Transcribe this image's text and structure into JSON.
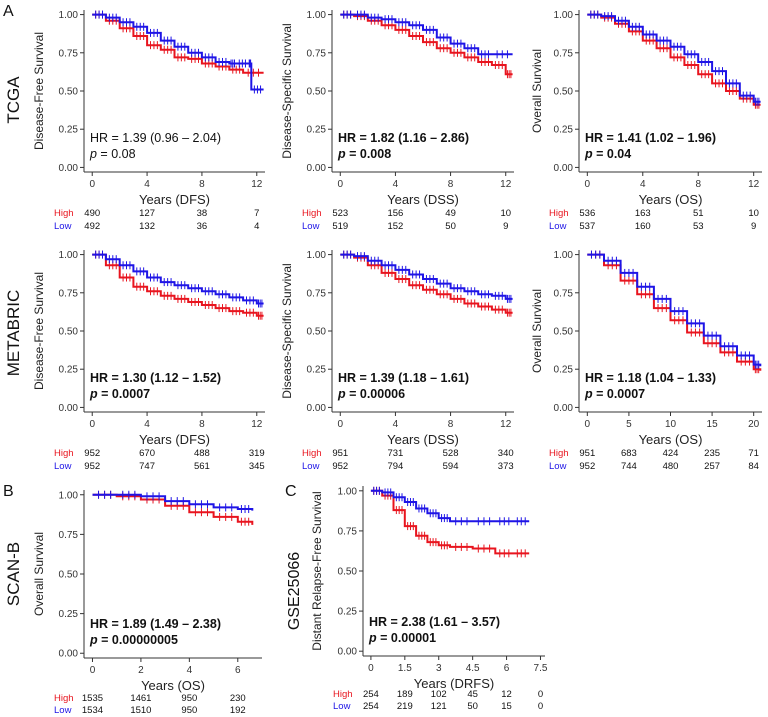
{
  "panel_labels": {
    "a": "A",
    "b": "B",
    "c": "C"
  },
  "row_labels": {
    "tcga": "TCGA",
    "metabric": "METABRIC",
    "scanb": "SCAN-B",
    "gse": "GSE25066"
  },
  "colors": {
    "high": "#e8141e",
    "low": "#1e14e6",
    "axis": "#333333",
    "text": "#222222"
  },
  "risk_labels": {
    "high": "High",
    "low": "Low"
  },
  "chart_data": [
    {
      "type": "line",
      "id": "tcga_dfs",
      "ylabel": "Disease-Free Survival",
      "xlabel": "Years (DFS)",
      "xlim": [
        -0.6,
        12.6
      ],
      "ylim": [
        -0.03,
        1.03
      ],
      "xticks": [
        0,
        4,
        8,
        12
      ],
      "yticks": [
        0.0,
        0.25,
        0.5,
        0.75,
        1.0
      ],
      "ytick_labels": [
        "0.00",
        "0.25",
        "0.50",
        "0.75",
        "1.00"
      ],
      "hr_text": "HR = 1.39 (0.96 – 2.04)",
      "p_label": "p",
      "p_value": " = 0.08",
      "hr_bold": false,
      "series": [
        {
          "name": "High",
          "x": [
            0,
            1,
            2,
            3,
            4,
            5,
            6,
            7,
            8,
            9,
            10,
            11,
            12.5
          ],
          "y": [
            1.0,
            0.96,
            0.91,
            0.86,
            0.8,
            0.77,
            0.72,
            0.71,
            0.68,
            0.66,
            0.64,
            0.62,
            0.62
          ]
        },
        {
          "name": "Low",
          "x": [
            0,
            1,
            2,
            3,
            4,
            5,
            6,
            7,
            8,
            9,
            10,
            10.5,
            11.4,
            11.6,
            12.5
          ],
          "y": [
            1.0,
            0.98,
            0.95,
            0.92,
            0.88,
            0.83,
            0.79,
            0.75,
            0.72,
            0.69,
            0.68,
            0.68,
            0.68,
            0.51,
            0.51
          ]
        }
      ],
      "risk_times": [
        0,
        4,
        8,
        12
      ],
      "risk": {
        "high": [
          "490",
          "127",
          "38",
          "7"
        ],
        "low": [
          "492",
          "132",
          "36",
          "4"
        ]
      }
    },
    {
      "type": "line",
      "id": "tcga_dss",
      "ylabel": "Disease-Specific Survival",
      "xlabel": "Years (DSS)",
      "xlim": [
        -0.6,
        12.6
      ],
      "ylim": [
        -0.03,
        1.03
      ],
      "xticks": [
        0,
        4,
        8,
        12
      ],
      "yticks": [
        0.0,
        0.25,
        0.5,
        0.75,
        1.0
      ],
      "ytick_labels": [
        "0.00",
        "0.25",
        "0.50",
        "0.75",
        "1.00"
      ],
      "hr_text": "HR = 1.82 (1.16 – 2.86)",
      "p_label": "p",
      "p_value": " = 0.008",
      "hr_bold": true,
      "series": [
        {
          "name": "High",
          "x": [
            0,
            1,
            2,
            3,
            4,
            5,
            6,
            7,
            8,
            9,
            10,
            11,
            12,
            12.5
          ],
          "y": [
            1.0,
            0.99,
            0.96,
            0.93,
            0.9,
            0.86,
            0.82,
            0.78,
            0.75,
            0.72,
            0.69,
            0.67,
            0.61,
            0.61
          ]
        },
        {
          "name": "Low",
          "x": [
            0,
            1,
            2,
            3,
            4,
            5,
            6,
            7,
            8,
            9,
            10,
            11,
            12.5
          ],
          "y": [
            1.0,
            1.0,
            0.98,
            0.97,
            0.95,
            0.93,
            0.9,
            0.85,
            0.81,
            0.78,
            0.74,
            0.74,
            0.74
          ]
        }
      ],
      "risk_times": [
        0,
        4,
        8,
        12
      ],
      "risk": {
        "high": [
          "523",
          "156",
          "49",
          "10"
        ],
        "low": [
          "519",
          "152",
          "50",
          "9"
        ]
      }
    },
    {
      "type": "line",
      "id": "tcga_os",
      "ylabel": "Overall Survival",
      "xlabel": "Years (OS)",
      "xlim": [
        -0.6,
        12.6
      ],
      "ylim": [
        -0.03,
        1.03
      ],
      "xticks": [
        0,
        4,
        8,
        12
      ],
      "yticks": [
        0.0,
        0.25,
        0.5,
        0.75,
        1.0
      ],
      "ytick_labels": [
        "0.00",
        "0.25",
        "0.50",
        "0.75",
        "1.00"
      ],
      "hr_text": "HR = 1.41 (1.02 – 1.96)",
      "p_label": "p",
      "p_value": " = 0.04",
      "hr_bold": true,
      "series": [
        {
          "name": "High",
          "x": [
            0,
            1,
            2,
            3,
            4,
            5,
            6,
            7,
            8,
            9,
            10,
            11,
            12,
            12.5
          ],
          "y": [
            1.0,
            0.98,
            0.94,
            0.89,
            0.83,
            0.78,
            0.72,
            0.67,
            0.61,
            0.55,
            0.5,
            0.45,
            0.41,
            0.41
          ]
        },
        {
          "name": "Low",
          "x": [
            0,
            1,
            2,
            3,
            4,
            5,
            6,
            7,
            8,
            9,
            10,
            11,
            12,
            12.5
          ],
          "y": [
            1.0,
            0.99,
            0.96,
            0.92,
            0.87,
            0.83,
            0.79,
            0.74,
            0.69,
            0.63,
            0.55,
            0.47,
            0.43,
            0.43
          ]
        }
      ],
      "risk_times": [
        0,
        4,
        8,
        12
      ],
      "risk": {
        "high": [
          "536",
          "163",
          "51",
          "10"
        ],
        "low": [
          "537",
          "160",
          "53",
          "9"
        ]
      }
    },
    {
      "type": "line",
      "id": "metabric_dfs",
      "ylabel": "Disease-Free Survival",
      "xlabel": "Years (DFS)",
      "xlim": [
        -0.6,
        12.6
      ],
      "ylim": [
        -0.03,
        1.03
      ],
      "xticks": [
        0,
        4,
        8,
        12
      ],
      "yticks": [
        0.0,
        0.25,
        0.5,
        0.75,
        1.0
      ],
      "ytick_labels": [
        "0.00",
        "0.25",
        "0.50",
        "0.75",
        "1.00"
      ],
      "hr_text": "HR = 1.30 (1.12 – 1.52)",
      "p_label": "p",
      "p_value": " = 0.0007",
      "hr_bold": true,
      "series": [
        {
          "name": "High",
          "x": [
            0,
            1,
            2,
            3,
            4,
            5,
            6,
            7,
            8,
            9,
            10,
            11,
            12,
            12.5
          ],
          "y": [
            1.0,
            0.93,
            0.85,
            0.79,
            0.76,
            0.73,
            0.71,
            0.69,
            0.67,
            0.65,
            0.63,
            0.62,
            0.6,
            0.6
          ]
        },
        {
          "name": "Low",
          "x": [
            0,
            1,
            2,
            3,
            4,
            5,
            6,
            7,
            8,
            9,
            10,
            11,
            12,
            12.5
          ],
          "y": [
            1.0,
            0.97,
            0.93,
            0.89,
            0.85,
            0.82,
            0.8,
            0.78,
            0.76,
            0.74,
            0.72,
            0.7,
            0.68,
            0.68
          ]
        }
      ],
      "risk_times": [
        0,
        4,
        8,
        12
      ],
      "risk": {
        "high": [
          "952",
          "670",
          "488",
          "319"
        ],
        "low": [
          "952",
          "747",
          "561",
          "345"
        ]
      }
    },
    {
      "type": "line",
      "id": "metabric_dss",
      "ylabel": "Disease-Specific Survival",
      "xlabel": "Years (DSS)",
      "xlim": [
        -0.6,
        12.6
      ],
      "ylim": [
        -0.03,
        1.03
      ],
      "xticks": [
        0,
        4,
        8,
        12
      ],
      "yticks": [
        0.0,
        0.25,
        0.5,
        0.75,
        1.0
      ],
      "ytick_labels": [
        "0.00",
        "0.25",
        "0.50",
        "0.75",
        "1.00"
      ],
      "hr_text": "HR = 1.39 (1.18 – 1.61)",
      "p_label": "p",
      "p_value": " = 0.00006",
      "hr_bold": true,
      "series": [
        {
          "name": "High",
          "x": [
            0,
            1,
            2,
            3,
            4,
            5,
            6,
            7,
            8,
            9,
            10,
            11,
            12,
            12.5
          ],
          "y": [
            1.0,
            0.98,
            0.93,
            0.88,
            0.84,
            0.8,
            0.77,
            0.74,
            0.71,
            0.68,
            0.66,
            0.64,
            0.62,
            0.62
          ]
        },
        {
          "name": "Low",
          "x": [
            0,
            1,
            2,
            3,
            4,
            5,
            6,
            7,
            8,
            9,
            10,
            11,
            12,
            12.5
          ],
          "y": [
            1.0,
            0.99,
            0.96,
            0.93,
            0.9,
            0.87,
            0.84,
            0.81,
            0.78,
            0.76,
            0.74,
            0.73,
            0.71,
            0.71
          ]
        }
      ],
      "risk_times": [
        0,
        4,
        8,
        12
      ],
      "risk": {
        "high": [
          "951",
          "731",
          "528",
          "340"
        ],
        "low": [
          "952",
          "794",
          "594",
          "373"
        ]
      }
    },
    {
      "type": "line",
      "id": "metabric_os",
      "ylabel": "Overall Survival",
      "xlabel": "Years (OS)",
      "xlim": [
        -1.0,
        21.0
      ],
      "ylim": [
        -0.03,
        1.03
      ],
      "xticks": [
        0,
        5,
        10,
        15,
        20
      ],
      "yticks": [
        0.0,
        0.25,
        0.5,
        0.75,
        1.0
      ],
      "ytick_labels": [
        "0.00",
        "0.25",
        "0.50",
        "0.75",
        "1.00"
      ],
      "hr_text": "HR = 1.18 (1.04 – 1.33)",
      "p_label": "p",
      "p_value": " = 0.0007",
      "hr_bold": true,
      "series": [
        {
          "name": "High",
          "x": [
            0,
            2,
            4,
            6,
            8,
            10,
            12,
            14,
            16,
            18,
            20,
            20.8
          ],
          "y": [
            1.0,
            0.93,
            0.83,
            0.74,
            0.65,
            0.57,
            0.49,
            0.42,
            0.36,
            0.3,
            0.25,
            0.24
          ]
        },
        {
          "name": "Low",
          "x": [
            0,
            2,
            4,
            6,
            8,
            10,
            12,
            14,
            16,
            18,
            20,
            20.8
          ],
          "y": [
            1.0,
            0.96,
            0.88,
            0.79,
            0.71,
            0.63,
            0.55,
            0.47,
            0.4,
            0.34,
            0.28,
            0.27
          ]
        }
      ],
      "risk_times": [
        0,
        5,
        10,
        15,
        20
      ],
      "risk": {
        "high": [
          "951",
          "683",
          "424",
          "235",
          "71"
        ],
        "low": [
          "952",
          "744",
          "480",
          "257",
          "84"
        ]
      }
    },
    {
      "type": "line",
      "id": "scanb_os",
      "ylabel": "Overall Survival",
      "xlabel": "Years (OS)",
      "xlim": [
        -0.35,
        7.0
      ],
      "ylim": [
        -0.03,
        1.03
      ],
      "xticks": [
        0,
        2,
        4,
        6
      ],
      "yticks": [
        0.0,
        0.25,
        0.5,
        0.75,
        1.0
      ],
      "ytick_labels": [
        "0.00",
        "0.25",
        "0.50",
        "0.75",
        "1.00"
      ],
      "hr_text": "HR = 1.89 (1.49 – 2.38)",
      "p_label": "p",
      "p_value": " = 0.00000005",
      "hr_bold": true,
      "series": [
        {
          "name": "High",
          "x": [
            0,
            1,
            2,
            3,
            4,
            5,
            6,
            6.6
          ],
          "y": [
            1.0,
            0.99,
            0.97,
            0.93,
            0.89,
            0.86,
            0.83,
            0.81
          ]
        },
        {
          "name": "Low",
          "x": [
            0,
            1,
            2,
            3,
            4,
            5,
            6,
            6.6
          ],
          "y": [
            1.0,
            1.0,
            0.99,
            0.96,
            0.94,
            0.92,
            0.91,
            0.9
          ]
        }
      ],
      "risk_times": [
        0,
        2,
        4,
        6
      ],
      "risk": {
        "high": [
          "1535",
          "1461",
          "950",
          "230"
        ],
        "low": [
          "1534",
          "1510",
          "950",
          "192"
        ]
      }
    },
    {
      "type": "line",
      "id": "gse25066_drfs",
      "ylabel": "Distant Relapse-Free Survival",
      "xlabel": "Years (DRFS)",
      "xlim": [
        -0.35,
        7.7
      ],
      "ylim": [
        -0.03,
        1.03
      ],
      "xticks": [
        0,
        1.5,
        3,
        4.5,
        6,
        7.5
      ],
      "xtick_labels": [
        "0",
        "1.5",
        "3",
        "4.5",
        "6",
        "7.5"
      ],
      "yticks": [
        0.0,
        0.25,
        0.5,
        0.75,
        1.0
      ],
      "ytick_labels": [
        "0.00",
        "0.25",
        "0.50",
        "0.75",
        "1.00"
      ],
      "hr_text": "HR = 2.38 (1.61 – 3.57)",
      "p_label": "p",
      "p_value": " = 0.00001",
      "hr_bold": true,
      "series": [
        {
          "name": "High",
          "x": [
            0,
            0.5,
            1.0,
            1.5,
            2.0,
            2.5,
            3.0,
            3.5,
            4.5,
            5.5,
            6.3,
            7.0
          ],
          "y": [
            1.0,
            0.97,
            0.88,
            0.78,
            0.72,
            0.68,
            0.66,
            0.65,
            0.64,
            0.61,
            0.61,
            0.61
          ]
        },
        {
          "name": "Low",
          "x": [
            0,
            0.5,
            1.0,
            1.5,
            2.0,
            2.5,
            3.0,
            3.5,
            4.5,
            5.5,
            6.3,
            7.0
          ],
          "y": [
            1.0,
            0.99,
            0.96,
            0.93,
            0.89,
            0.86,
            0.83,
            0.81,
            0.81,
            0.81,
            0.81,
            0.81
          ]
        }
      ],
      "risk_times": [
        0,
        1.5,
        3,
        4.5,
        6,
        7.5
      ],
      "risk": {
        "high": [
          "254",
          "189",
          "102",
          "45",
          "12",
          "0"
        ],
        "low": [
          "254",
          "219",
          "121",
          "50",
          "15",
          "0"
        ]
      }
    }
  ]
}
